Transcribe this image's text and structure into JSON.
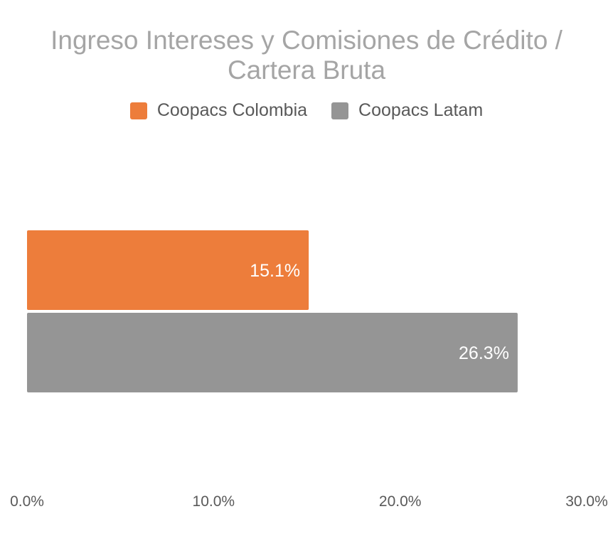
{
  "chart_data": {
    "type": "bar",
    "orientation": "horizontal",
    "title_lines": [
      "Ingreso Intereses y Comisiones de Crédito /",
      "Cartera Bruta"
    ],
    "series": [
      {
        "name": "Coopacs Colombia",
        "values": [
          15.1
        ],
        "label": "15.1%",
        "color": "#ed7d3b"
      },
      {
        "name": "Coopacs Latam",
        "values": [
          26.3
        ],
        "label": "26.3%",
        "color": "#959595"
      }
    ],
    "xlim": [
      0,
      30
    ],
    "xticks": [
      0,
      10,
      20,
      30
    ],
    "xtick_labels": [
      "0.0%",
      "10.0%",
      "20.0%",
      "30.0%"
    ],
    "grid": false,
    "legend_position": "top"
  }
}
